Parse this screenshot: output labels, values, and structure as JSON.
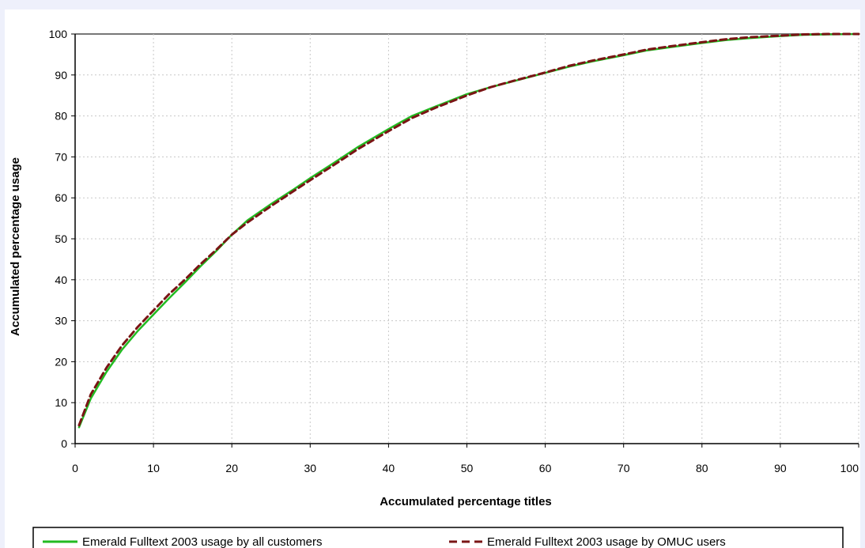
{
  "chart_data": {
    "type": "line",
    "xlabel": "Accumulated percentage titles",
    "ylabel": "Accumulated percentage usage",
    "xlim": [
      0,
      100
    ],
    "ylim": [
      0,
      100
    ],
    "xticks": [
      "0",
      "10",
      "20",
      "30",
      "40",
      "50",
      "60",
      "70",
      "80",
      "90",
      "100"
    ],
    "yticks": [
      "0",
      "10",
      "20",
      "30",
      "40",
      "50",
      "60",
      "70",
      "80",
      "90",
      "100"
    ],
    "grid": true,
    "legend_position": "bottom",
    "series": [
      {
        "name": "Emerald Fulltext 2003 usage by all customers",
        "color": "#22bb22",
        "style": "solid",
        "x": [
          0.5,
          2,
          4,
          6,
          8,
          10,
          12,
          14,
          16,
          18,
          20,
          22,
          25,
          28,
          30,
          33,
          36,
          40,
          43,
          46,
          50,
          53,
          56,
          60,
          63,
          66,
          70,
          73,
          76,
          80,
          83,
          86,
          90,
          93,
          96,
          100
        ],
        "y": [
          4,
          11,
          17.5,
          23,
          27.5,
          31.5,
          35.5,
          39.3,
          43.3,
          47,
          51,
          54.5,
          58.5,
          62.2,
          64.8,
          68.5,
          72.3,
          76.8,
          80,
          82.3,
          85.3,
          87,
          88.5,
          90.5,
          92,
          93.3,
          94.8,
          96,
          96.8,
          97.8,
          98.5,
          99,
          99.5,
          99.8,
          99.9,
          100
        ]
      },
      {
        "name": "Emerald Fulltext 2003 usage by OMUC users",
        "color": "#7a1515",
        "style": "dashed",
        "x": [
          0.5,
          2,
          4,
          6,
          8,
          10,
          12,
          14,
          16,
          18,
          20,
          22,
          25,
          28,
          30,
          33,
          36,
          40,
          43,
          46,
          50,
          53,
          56,
          60,
          63,
          66,
          70,
          73,
          76,
          80,
          83,
          86,
          90,
          93,
          96,
          100
        ],
        "y": [
          4.5,
          12,
          18.5,
          24,
          28.5,
          32.5,
          36.5,
          40,
          43.8,
          47.3,
          51,
          54,
          58,
          61.8,
          64.3,
          68,
          71.8,
          76.3,
          79.5,
          82,
          85,
          87,
          88.6,
          90.6,
          92.2,
          93.5,
          95,
          96.2,
          97,
          98,
          98.7,
          99.2,
          99.6,
          99.9,
          100,
          100
        ]
      }
    ]
  }
}
